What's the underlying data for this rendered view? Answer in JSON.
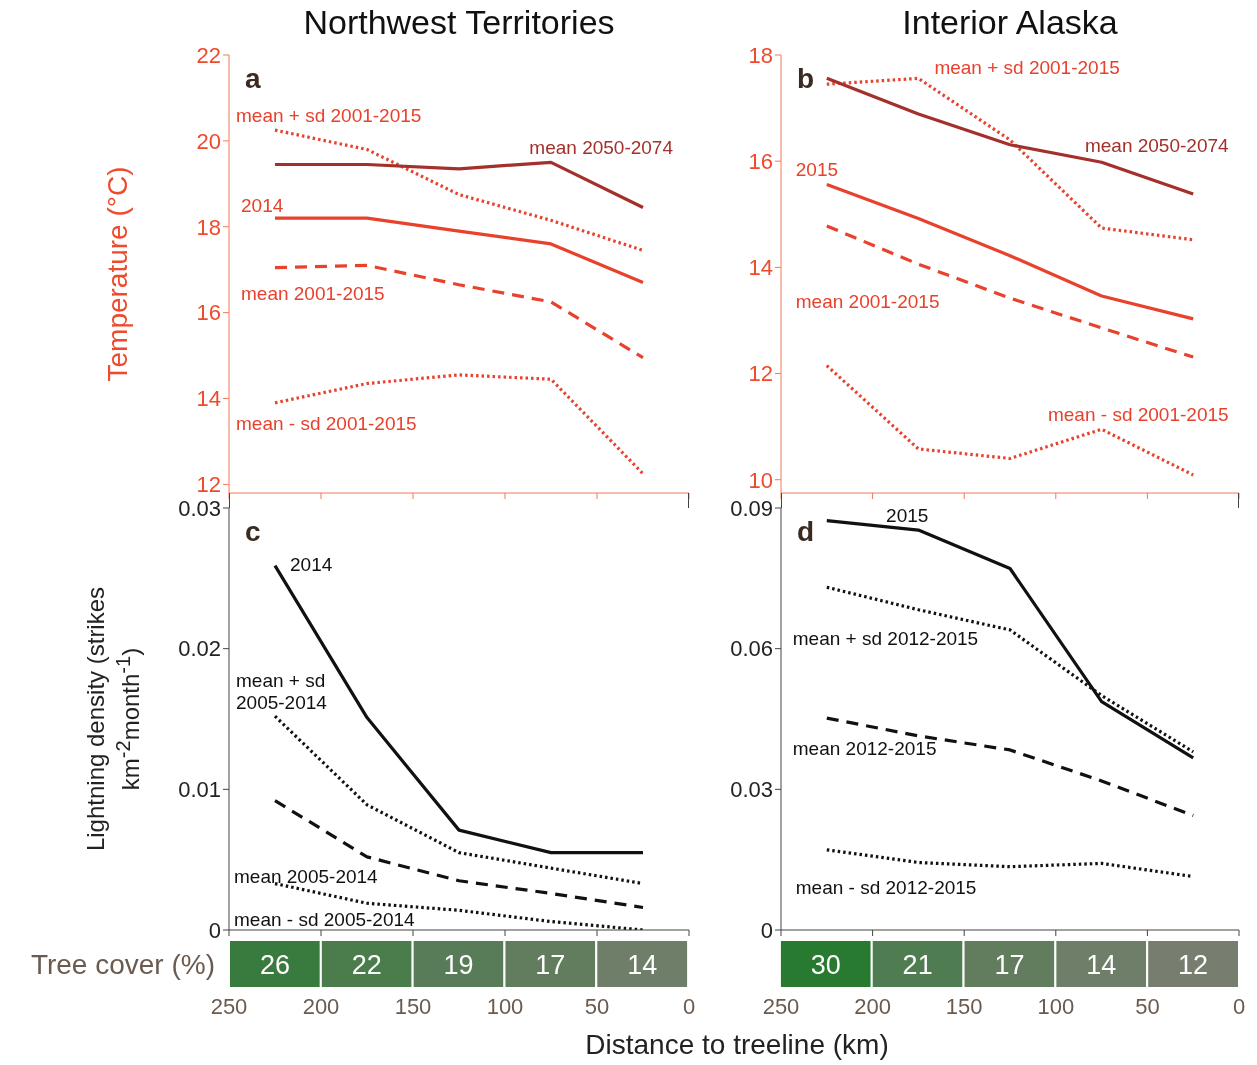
{
  "chart_data": [
    {
      "type": "line",
      "title": "Northwest Territories",
      "ylabel": "Temperature (°C)",
      "annotations": [
        "a"
      ],
      "x": [
        225,
        175,
        125,
        75,
        25
      ],
      "xlim": [
        250,
        0
      ],
      "xticks": [
        250,
        200,
        150,
        100,
        50,
        0
      ],
      "ylim": [
        11.8,
        22
      ],
      "yticks": [
        12,
        14,
        16,
        18,
        20,
        22
      ],
      "tick_labels": "y",
      "series": [
        {
          "name": "mean + sd 2001-2015",
          "color": "#e8412c",
          "line_style": "dotted",
          "values": [
            20.25,
            19.8,
            18.75,
            18.15,
            17.45
          ]
        },
        {
          "name": "mean 2050-2074",
          "color": "#a3302b",
          "line_style": "solid",
          "values": [
            19.45,
            19.45,
            19.35,
            19.5,
            18.45
          ]
        },
        {
          "name": "2014",
          "color": "#e8412c",
          "line_style": "solid",
          "values": [
            18.2,
            18.2,
            17.9,
            17.6,
            16.7
          ]
        },
        {
          "name": "mean 2001-2015",
          "color": "#e8412c",
          "line_style": "dashed",
          "values": [
            17.05,
            17.1,
            16.65,
            16.25,
            14.95
          ]
        },
        {
          "name": "mean - sd 2001-2015",
          "color": "#e8412c",
          "line_style": "dotted",
          "values": [
            13.9,
            14.35,
            14.55,
            14.45,
            12.25
          ]
        }
      ]
    },
    {
      "type": "line",
      "title": "Interior Alaska",
      "annotations": [
        "b"
      ],
      "x": [
        225,
        175,
        125,
        75,
        25
      ],
      "xlim": [
        250,
        0
      ],
      "xticks": [
        250,
        200,
        150,
        100,
        50,
        0
      ],
      "ylim": [
        9.75,
        18
      ],
      "yticks": [
        10,
        12,
        14,
        16,
        18
      ],
      "tick_labels": "y",
      "series": [
        {
          "name": "mean + sd 2001-2015",
          "color": "#e8412c",
          "line_style": "dotted",
          "values": [
            17.45,
            17.56,
            16.4,
            14.74,
            14.52
          ]
        },
        {
          "name": "mean 2050-2074",
          "color": "#a3302b",
          "line_style": "solid",
          "values": [
            17.56,
            16.89,
            16.31,
            15.98,
            15.38
          ]
        },
        {
          "name": "2015",
          "color": "#e8412c",
          "line_style": "solid",
          "values": [
            15.56,
            14.92,
            14.22,
            13.46,
            13.03
          ]
        },
        {
          "name": "mean 2001-2015",
          "color": "#e8412c",
          "line_style": "dashed",
          "values": [
            14.78,
            14.06,
            13.42,
            12.86,
            12.31
          ]
        },
        {
          "name": "mean - sd 2001-2015",
          "color": "#e8412c",
          "line_style": "dotted",
          "values": [
            12.15,
            10.58,
            10.4,
            10.95,
            10.09
          ]
        }
      ]
    },
    {
      "type": "line",
      "xlabel": "Distance to treeline (km)",
      "ylabel": "Lightning density (strikes km$^{-2}$month$^{-1}$)",
      "annotations": [
        "c"
      ],
      "x": [
        225,
        175,
        125,
        75,
        25
      ],
      "xlim": [
        250,
        0
      ],
      "xticks": [
        250,
        200,
        150,
        100,
        50,
        0
      ],
      "ylim": [
        0,
        0.03
      ],
      "yticks": [
        0,
        0.01,
        0.02,
        0.03
      ],
      "series": [
        {
          "name": "2014",
          "color": "#111111",
          "line_style": "solid",
          "values": [
            0.0259,
            0.0151,
            0.0071,
            0.0055,
            0.0055
          ]
        },
        {
          "name": "mean + sd 2005-2014",
          "color": "#111111",
          "line_style": "dotted",
          "values": [
            0.0152,
            0.0089,
            0.0055,
            0.0044,
            0.0033
          ]
        },
        {
          "name": "mean 2005-2014",
          "color": "#111111",
          "line_style": "dashed",
          "values": [
            0.0092,
            0.0052,
            0.0035,
            0.0026,
            0.0016
          ]
        },
        {
          "name": "mean - sd 2005-2014",
          "color": "#111111",
          "line_style": "dotted",
          "values": [
            0.0033,
            0.0019,
            0.0014,
            0.0006,
            0
          ]
        }
      ]
    },
    {
      "type": "line",
      "annotations": [
        "d"
      ],
      "x": [
        225,
        175,
        125,
        75,
        25
      ],
      "xlim": [
        250,
        0
      ],
      "xticks": [
        250,
        200,
        150,
        100,
        50,
        0
      ],
      "ylim": [
        0,
        0.09
      ],
      "yticks": [
        0,
        0.03,
        0.06,
        0.09
      ],
      "series": [
        {
          "name": "2015",
          "color": "#111111",
          "line_style": "solid",
          "values": [
            0.0873,
            0.0853,
            0.0771,
            0.0487,
            0.0367
          ]
        },
        {
          "name": "mean + sd 2012-2015",
          "color": "#111111",
          "line_style": "dotted",
          "values": [
            0.0731,
            0.0683,
            0.064,
            0.05,
            0.038
          ]
        },
        {
          "name": "mean 2012-2015",
          "color": "#111111",
          "line_style": "dashed",
          "values": [
            0.0452,
            0.0414,
            0.0384,
            0.0318,
            0.0244
          ]
        },
        {
          "name": "mean - sd 2012-2015",
          "color": "#111111",
          "line_style": "dotted",
          "values": [
            0.0171,
            0.0144,
            0.0135,
            0.0142,
            0.0114
          ]
        }
      ]
    },
    {
      "type": "heatmap",
      "categories": [
        null,
        null,
        null,
        null,
        null,
        null,
        null,
        null,
        null,
        null,
        null
      ],
      "y_categories": [
        "Tree cover (%)"
      ],
      "cells": [
        [
          26,
          22,
          19,
          17,
          14,
          null,
          30,
          21,
          17,
          14,
          12
        ]
      ],
      "data_labels": true
    }
  ]
}
